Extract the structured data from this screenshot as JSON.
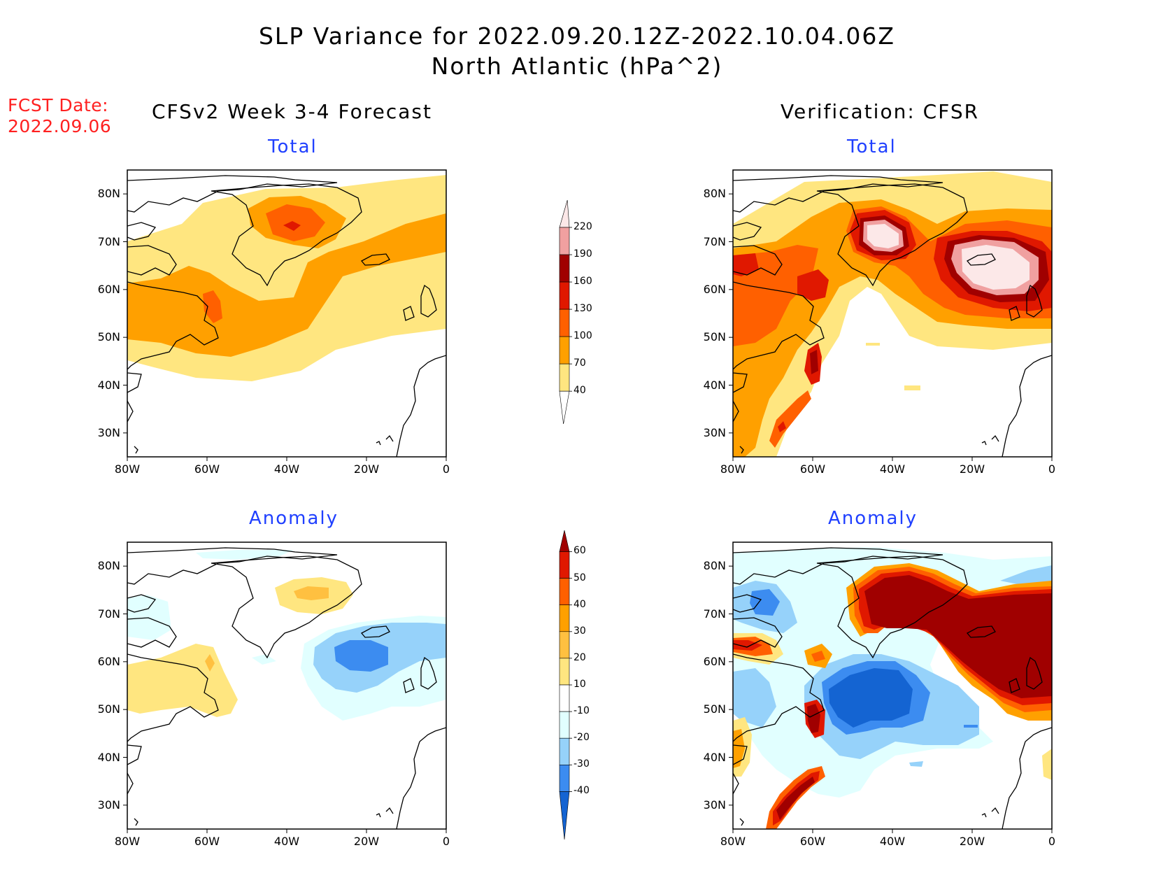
{
  "title": {
    "line1": "SLP Variance for 2022.09.20.12Z-2022.10.04.06Z",
    "line2": "North Atlantic (hPa^2)"
  },
  "fcst_date": {
    "label": "FCST Date:",
    "value": "2022.09.06"
  },
  "columns": {
    "left": "CFSv2 Week 3-4 Forecast",
    "right": "Verification: CFSR"
  },
  "panels": {
    "top_left": "Total",
    "top_right": "Total",
    "bottom_left": "Anomaly",
    "bottom_right": "Anomaly"
  },
  "axes": {
    "lat_ticks": [
      "80N",
      "70N",
      "60N",
      "50N",
      "40N",
      "30N"
    ],
    "lon_ticks": [
      "80W",
      "60W",
      "40W",
      "20W",
      "0"
    ],
    "lon_range": [
      -80,
      0
    ],
    "lat_range": [
      25,
      85
    ]
  },
  "colorbar_total": {
    "levels": [
      40,
      70,
      100,
      130,
      160,
      190,
      220
    ],
    "colors": [
      "#ffe680",
      "#ffa000",
      "#ff6000",
      "#e01800",
      "#a00000",
      "#f0a0a0",
      "#fce8e8"
    ]
  },
  "colorbar_anomaly": {
    "levels": [
      -40,
      -30,
      -20,
      -10,
      10,
      20,
      30,
      40,
      50,
      60
    ],
    "colors": [
      "#1464d2",
      "#3c8cf0",
      "#96d2fa",
      "#e1ffff",
      "#ffffff",
      "#ffe680",
      "#ffc040",
      "#ffa000",
      "#ff6000",
      "#e01800",
      "#a00000"
    ]
  },
  "chart_data": [
    {
      "type": "heatmap",
      "panel": "top_left",
      "field": "SLP variance total (CFSv2 forecast)",
      "features": [
        {
          "lon": -39,
          "lat": 72,
          "value": 160
        },
        {
          "lon": -58,
          "lat": 55,
          "value": 115
        },
        {
          "lon": -20,
          "lat": 63,
          "value": 85
        }
      ]
    },
    {
      "type": "heatmap",
      "panel": "top_right",
      "field": "SLP variance total (CFSR verification)",
      "features": [
        {
          "lon": -42,
          "lat": 72,
          "value": 230
        },
        {
          "lon": -12,
          "lat": 65,
          "value": 230
        },
        {
          "lon": -65,
          "lat": 43,
          "value": 170
        },
        {
          "lon": -63,
          "lat": 60,
          "value": 150
        }
      ]
    },
    {
      "type": "heatmap",
      "panel": "bottom_left",
      "field": "SLP variance anomaly (CFSv2 forecast)",
      "features": [
        {
          "lon": -32,
          "lat": 74,
          "value": 35
        },
        {
          "lon": -20,
          "lat": 60,
          "value": -35
        },
        {
          "lon": -58,
          "lat": 58,
          "value": 30
        }
      ]
    },
    {
      "type": "heatmap",
      "panel": "bottom_right",
      "field": "SLP variance anomaly (CFSR verification)",
      "features": [
        {
          "lon": -40,
          "lat": 74,
          "value": 65
        },
        {
          "lon": -10,
          "lat": 65,
          "value": 65
        },
        {
          "lon": -40,
          "lat": 55,
          "value": -45
        },
        {
          "lon": -65,
          "lat": 44,
          "value": 65
        },
        {
          "lon": -63,
          "lat": 62,
          "value": 30
        },
        {
          "lon": -75,
          "lat": 72,
          "value": -35
        }
      ]
    }
  ]
}
